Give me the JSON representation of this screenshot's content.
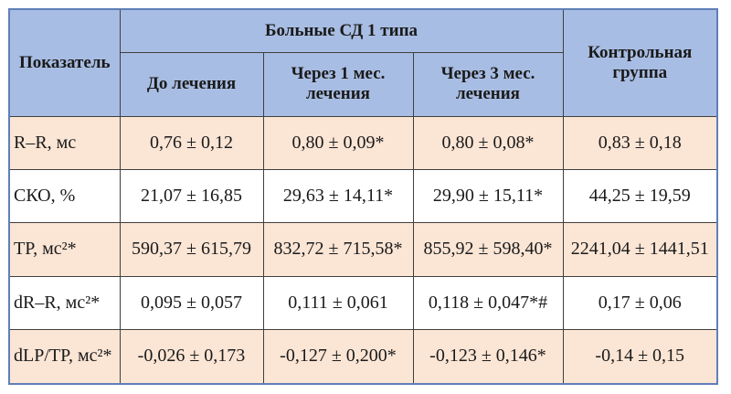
{
  "table": {
    "header": {
      "indicator": "Показатель",
      "group": "Больные СД 1 типа",
      "before": "До лечения",
      "month1": "Через 1 мес. лечения",
      "month3": "Через 3 мес. лечения",
      "control": "Контрольная группа"
    },
    "rows": [
      {
        "label": "R–R, мс",
        "before": "0,76 ± 0,12",
        "month1": "0,80 ± 0,09*",
        "month3": "0,80 ± 0,08*",
        "control": "0,83 ± 0,18"
      },
      {
        "label": "СКО, %",
        "before": "21,07 ± 16,85",
        "month1": "29,63 ± 14,11*",
        "month3": "29,90 ± 15,11*",
        "control": "44,25 ± 19,59"
      },
      {
        "label": "TP, мс²*",
        "before": "590,37 ± 615,79",
        "month1": "832,72 ± 715,58*",
        "month3": "855,92 ± 598,40*",
        "control": "2241,04 ± 1441,51"
      },
      {
        "label": "dR–R, мс²*",
        "before": "0,095 ± 0,057",
        "month1": "0,111 ± 0,061",
        "month3": "0,118 ± 0,047*#",
        "control": "0,17 ± 0,06"
      },
      {
        "label": "dLP/TP, мс²*",
        "before": "-0,026 ± 0,173",
        "month1": "-0,127 ± 0,200*",
        "month3": "-0,123 ± 0,146*",
        "control": "-0,14 ± 0,15"
      }
    ],
    "colors": {
      "header_bg": "#a8bde3",
      "row_peach": "#fbe5d5",
      "row_white": "#ffffff",
      "frame": "#5f7fb8"
    }
  }
}
